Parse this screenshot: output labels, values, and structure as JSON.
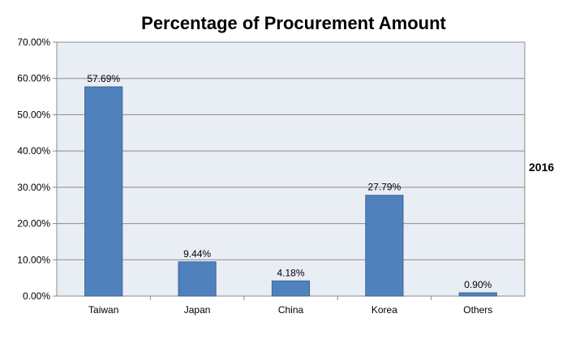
{
  "chart_data": {
    "type": "bar",
    "title": "Percentage of Procurement Amount",
    "series_label": "2016",
    "categories": [
      "Taiwan",
      "Japan",
      "China",
      "Korea",
      "Others"
    ],
    "values": [
      57.69,
      9.44,
      4.18,
      27.79,
      0.9
    ],
    "data_labels": [
      "57.69%",
      "9.44%",
      "4.18%",
      "27.79%",
      "0.90%"
    ],
    "y_ticks": [
      "0.00%",
      "10.00%",
      "20.00%",
      "30.00%",
      "40.00%",
      "50.00%",
      "60.00%",
      "70.00%"
    ],
    "ylim": [
      0,
      70
    ],
    "grid": true,
    "bar_color": "#4f81bd",
    "plot_background": "#e9edf4"
  }
}
